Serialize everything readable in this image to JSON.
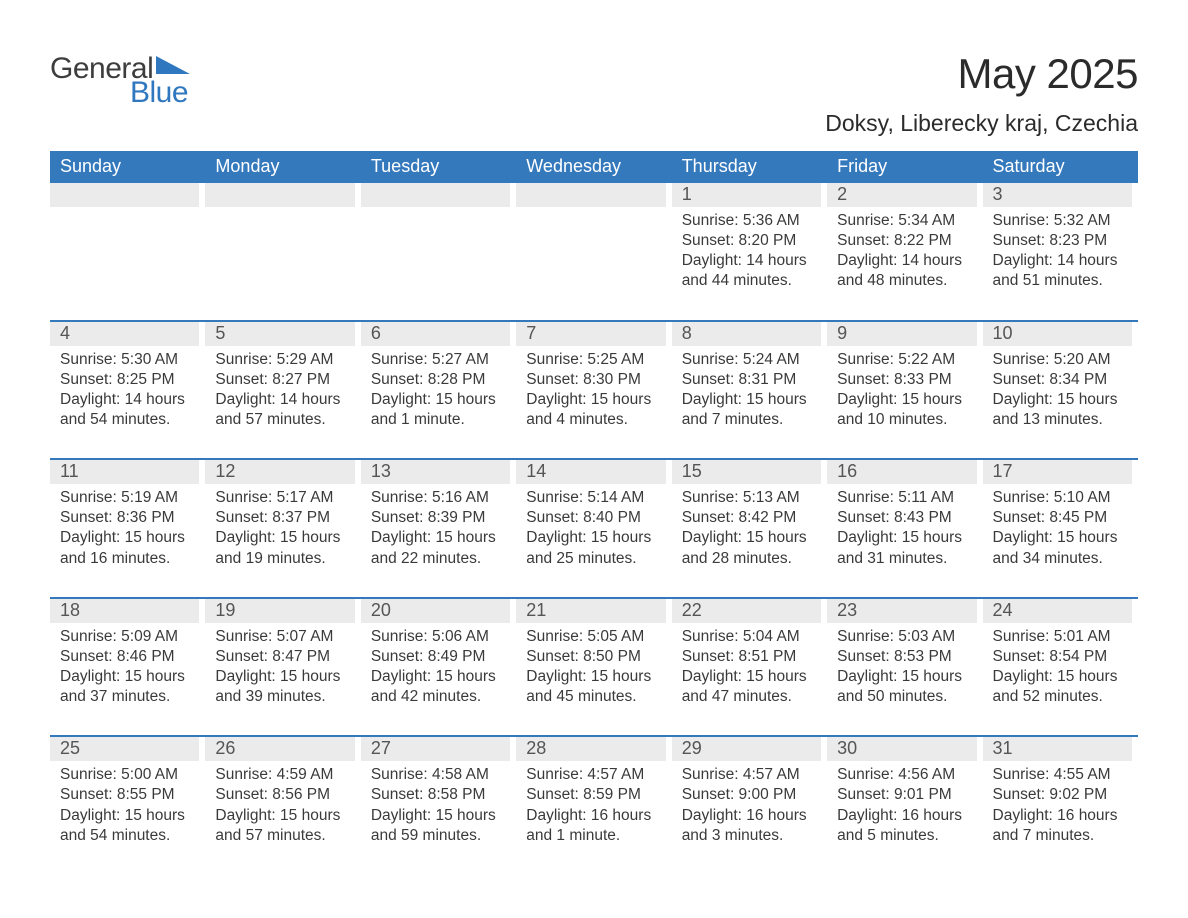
{
  "logo": {
    "word1": "General",
    "word2": "Blue",
    "triangle_color": "#2f78bf"
  },
  "title": "May 2025",
  "location": "Doksy, Liberecky kraj, Czechia",
  "colors": {
    "header_bg": "#3579bd",
    "header_text": "#ffffff",
    "daynum_bg": "#ebebeb",
    "daynum_text": "#555555",
    "body_text": "#3a3a3a",
    "week_divider": "#3579bd",
    "page_bg": "#ffffff"
  },
  "font": {
    "family": "Segoe UI, Arial, sans-serif",
    "title_size_pt": 32,
    "location_size_pt": 17,
    "weekday_size_pt": 14,
    "body_size_pt": 12
  },
  "weekdays": [
    "Sunday",
    "Monday",
    "Tuesday",
    "Wednesday",
    "Thursday",
    "Friday",
    "Saturday"
  ],
  "weeks": [
    [
      {
        "day": "",
        "sunrise": "",
        "sunset": "",
        "daylight": ""
      },
      {
        "day": "",
        "sunrise": "",
        "sunset": "",
        "daylight": ""
      },
      {
        "day": "",
        "sunrise": "",
        "sunset": "",
        "daylight": ""
      },
      {
        "day": "",
        "sunrise": "",
        "sunset": "",
        "daylight": ""
      },
      {
        "day": "1",
        "sunrise": "Sunrise: 5:36 AM",
        "sunset": "Sunset: 8:20 PM",
        "daylight": "Daylight: 14 hours and 44 minutes."
      },
      {
        "day": "2",
        "sunrise": "Sunrise: 5:34 AM",
        "sunset": "Sunset: 8:22 PM",
        "daylight": "Daylight: 14 hours and 48 minutes."
      },
      {
        "day": "3",
        "sunrise": "Sunrise: 5:32 AM",
        "sunset": "Sunset: 8:23 PM",
        "daylight": "Daylight: 14 hours and 51 minutes."
      }
    ],
    [
      {
        "day": "4",
        "sunrise": "Sunrise: 5:30 AM",
        "sunset": "Sunset: 8:25 PM",
        "daylight": "Daylight: 14 hours and 54 minutes."
      },
      {
        "day": "5",
        "sunrise": "Sunrise: 5:29 AM",
        "sunset": "Sunset: 8:27 PM",
        "daylight": "Daylight: 14 hours and 57 minutes."
      },
      {
        "day": "6",
        "sunrise": "Sunrise: 5:27 AM",
        "sunset": "Sunset: 8:28 PM",
        "daylight": "Daylight: 15 hours and 1 minute."
      },
      {
        "day": "7",
        "sunrise": "Sunrise: 5:25 AM",
        "sunset": "Sunset: 8:30 PM",
        "daylight": "Daylight: 15 hours and 4 minutes."
      },
      {
        "day": "8",
        "sunrise": "Sunrise: 5:24 AM",
        "sunset": "Sunset: 8:31 PM",
        "daylight": "Daylight: 15 hours and 7 minutes."
      },
      {
        "day": "9",
        "sunrise": "Sunrise: 5:22 AM",
        "sunset": "Sunset: 8:33 PM",
        "daylight": "Daylight: 15 hours and 10 minutes."
      },
      {
        "day": "10",
        "sunrise": "Sunrise: 5:20 AM",
        "sunset": "Sunset: 8:34 PM",
        "daylight": "Daylight: 15 hours and 13 minutes."
      }
    ],
    [
      {
        "day": "11",
        "sunrise": "Sunrise: 5:19 AM",
        "sunset": "Sunset: 8:36 PM",
        "daylight": "Daylight: 15 hours and 16 minutes."
      },
      {
        "day": "12",
        "sunrise": "Sunrise: 5:17 AM",
        "sunset": "Sunset: 8:37 PM",
        "daylight": "Daylight: 15 hours and 19 minutes."
      },
      {
        "day": "13",
        "sunrise": "Sunrise: 5:16 AM",
        "sunset": "Sunset: 8:39 PM",
        "daylight": "Daylight: 15 hours and 22 minutes."
      },
      {
        "day": "14",
        "sunrise": "Sunrise: 5:14 AM",
        "sunset": "Sunset: 8:40 PM",
        "daylight": "Daylight: 15 hours and 25 minutes."
      },
      {
        "day": "15",
        "sunrise": "Sunrise: 5:13 AM",
        "sunset": "Sunset: 8:42 PM",
        "daylight": "Daylight: 15 hours and 28 minutes."
      },
      {
        "day": "16",
        "sunrise": "Sunrise: 5:11 AM",
        "sunset": "Sunset: 8:43 PM",
        "daylight": "Daylight: 15 hours and 31 minutes."
      },
      {
        "day": "17",
        "sunrise": "Sunrise: 5:10 AM",
        "sunset": "Sunset: 8:45 PM",
        "daylight": "Daylight: 15 hours and 34 minutes."
      }
    ],
    [
      {
        "day": "18",
        "sunrise": "Sunrise: 5:09 AM",
        "sunset": "Sunset: 8:46 PM",
        "daylight": "Daylight: 15 hours and 37 minutes."
      },
      {
        "day": "19",
        "sunrise": "Sunrise: 5:07 AM",
        "sunset": "Sunset: 8:47 PM",
        "daylight": "Daylight: 15 hours and 39 minutes."
      },
      {
        "day": "20",
        "sunrise": "Sunrise: 5:06 AM",
        "sunset": "Sunset: 8:49 PM",
        "daylight": "Daylight: 15 hours and 42 minutes."
      },
      {
        "day": "21",
        "sunrise": "Sunrise: 5:05 AM",
        "sunset": "Sunset: 8:50 PM",
        "daylight": "Daylight: 15 hours and 45 minutes."
      },
      {
        "day": "22",
        "sunrise": "Sunrise: 5:04 AM",
        "sunset": "Sunset: 8:51 PM",
        "daylight": "Daylight: 15 hours and 47 minutes."
      },
      {
        "day": "23",
        "sunrise": "Sunrise: 5:03 AM",
        "sunset": "Sunset: 8:53 PM",
        "daylight": "Daylight: 15 hours and 50 minutes."
      },
      {
        "day": "24",
        "sunrise": "Sunrise: 5:01 AM",
        "sunset": "Sunset: 8:54 PM",
        "daylight": "Daylight: 15 hours and 52 minutes."
      }
    ],
    [
      {
        "day": "25",
        "sunrise": "Sunrise: 5:00 AM",
        "sunset": "Sunset: 8:55 PM",
        "daylight": "Daylight: 15 hours and 54 minutes."
      },
      {
        "day": "26",
        "sunrise": "Sunrise: 4:59 AM",
        "sunset": "Sunset: 8:56 PM",
        "daylight": "Daylight: 15 hours and 57 minutes."
      },
      {
        "day": "27",
        "sunrise": "Sunrise: 4:58 AM",
        "sunset": "Sunset: 8:58 PM",
        "daylight": "Daylight: 15 hours and 59 minutes."
      },
      {
        "day": "28",
        "sunrise": "Sunrise: 4:57 AM",
        "sunset": "Sunset: 8:59 PM",
        "daylight": "Daylight: 16 hours and 1 minute."
      },
      {
        "day": "29",
        "sunrise": "Sunrise: 4:57 AM",
        "sunset": "Sunset: 9:00 PM",
        "daylight": "Daylight: 16 hours and 3 minutes."
      },
      {
        "day": "30",
        "sunrise": "Sunrise: 4:56 AM",
        "sunset": "Sunset: 9:01 PM",
        "daylight": "Daylight: 16 hours and 5 minutes."
      },
      {
        "day": "31",
        "sunrise": "Sunrise: 4:55 AM",
        "sunset": "Sunset: 9:02 PM",
        "daylight": "Daylight: 16 hours and 7 minutes."
      }
    ]
  ]
}
